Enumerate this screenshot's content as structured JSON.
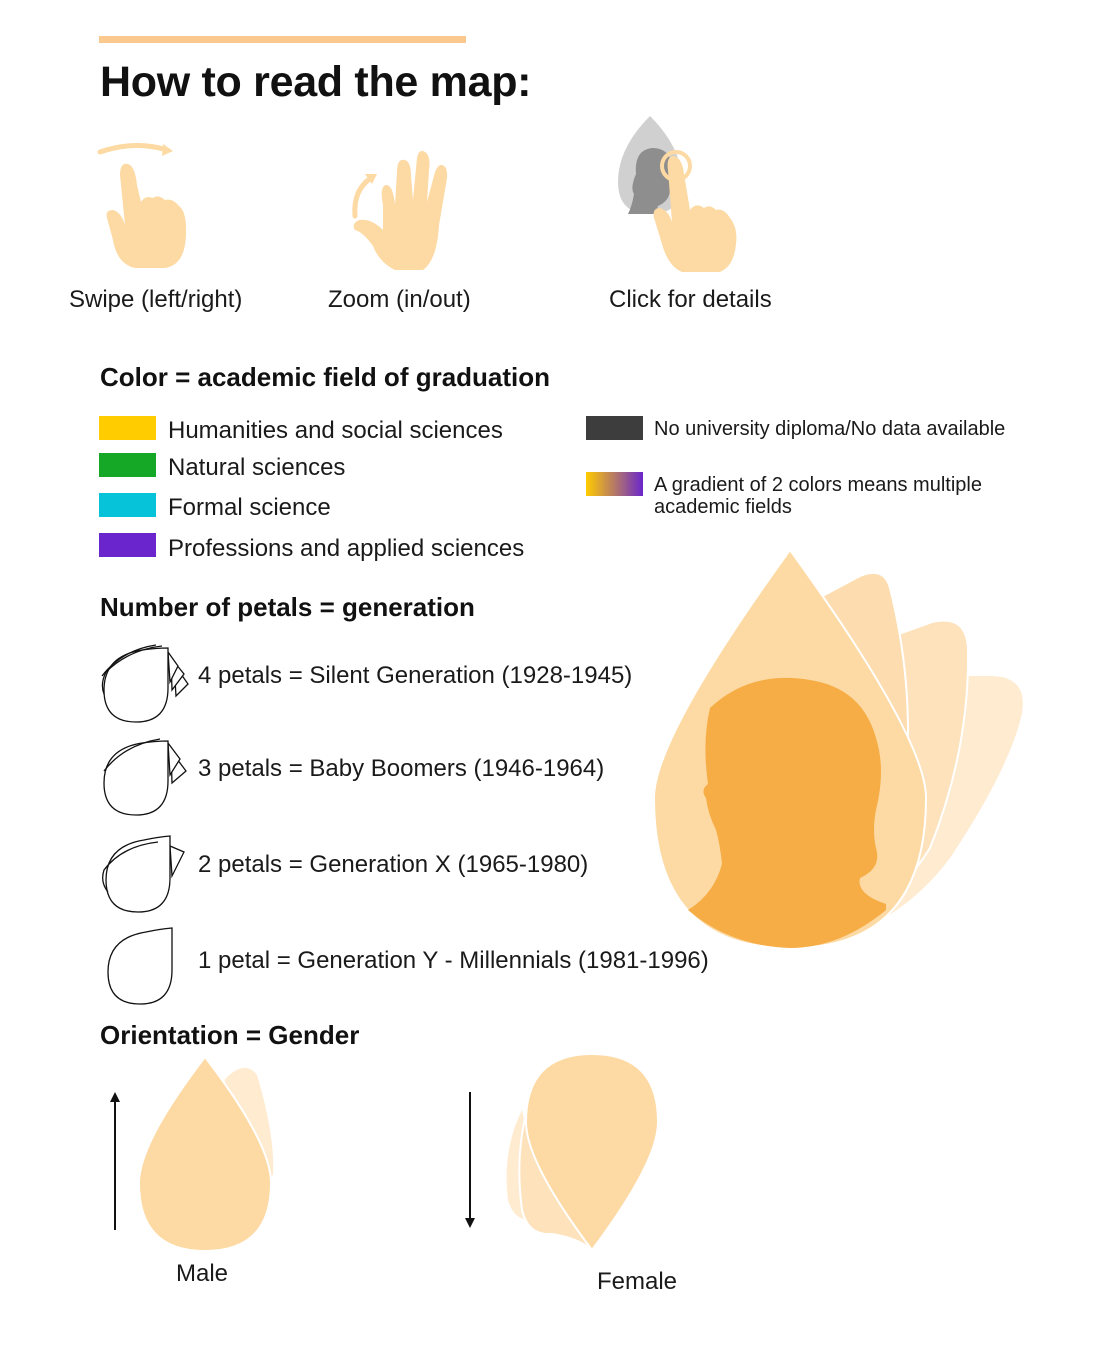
{
  "title": "How to read the map:",
  "gestures": [
    {
      "label": "Swipe (left/right)",
      "icon": "swipe-hand-icon"
    },
    {
      "label": "Zoom (in/out)",
      "icon": "zoom-hand-icon"
    },
    {
      "label": "Click for details",
      "icon": "click-hand-icon"
    }
  ],
  "color_section": {
    "heading": "Color = academic field of graduation",
    "fields": [
      {
        "label": "Humanities and social sciences",
        "color": "#FFCC00"
      },
      {
        "label": "Natural sciences",
        "color": "#15A826"
      },
      {
        "label": "Formal science",
        "color": "#06C3DA"
      },
      {
        "label": "Professions and applied sciences",
        "color": "#6A26CC"
      }
    ],
    "no_diploma": {
      "label": "No university diploma/No data available",
      "color": "#3D3D3D"
    },
    "gradient": {
      "label": "A gradient of 2 colors means multiple academic fields",
      "from": "#FFCC00",
      "to": "#6A26CC"
    }
  },
  "petals_section": {
    "heading": "Number of petals = generation",
    "generations": [
      {
        "petals": 4,
        "label": "4 petals = Silent Generation (1928-1945)"
      },
      {
        "petals": 3,
        "label": "3 petals = Baby Boomers (1946-1964)"
      },
      {
        "petals": 2,
        "label": "2 petals = Generation X (1965-1980)"
      },
      {
        "petals": 1,
        "label": "1 petal = Generation Y - Millennials (1981-1996)"
      }
    ]
  },
  "orientation_section": {
    "heading": "Orientation = Gender",
    "male_label": "Male",
    "female_label": "Female"
  },
  "colors": {
    "accent": "#FBC98E",
    "petal": "#FDD9A3",
    "petal_light": "#FEEBD0",
    "silhouette": "#F6AD45"
  }
}
